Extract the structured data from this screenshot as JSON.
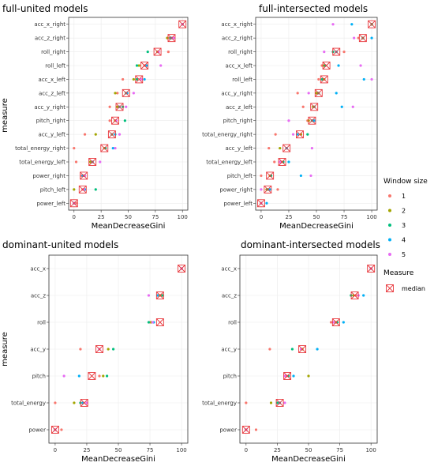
{
  "series_colors": {
    "1": "#F8766D",
    "2": "#A3A500",
    "3": "#00BF7D",
    "4": "#00B0F6",
    "5": "#E76BF3"
  },
  "median_color": "#E8393E",
  "legend": {
    "window_title": "Window size",
    "window_items": [
      "1",
      "2",
      "3",
      "4",
      "5"
    ],
    "measure_title": "Measure",
    "measure_item": "median"
  },
  "chart_data": [
    {
      "type": "scatter",
      "title": "full-united models",
      "xlabel": "MeanDecreaseGini",
      "ylabel": "measure",
      "xlim": [
        0,
        100
      ],
      "xticks": [
        0,
        25,
        50,
        75,
        100
      ],
      "grid": true,
      "categories": [
        "acc_x_right",
        "acc_z_right",
        "roll_right",
        "roll_left",
        "acc_x_left",
        "acc_z_left",
        "acc_y_right",
        "pitch_right",
        "acc_y_left",
        "total_energy_right",
        "total_energy_left",
        "power_right",
        "pitch_left",
        "power_left"
      ],
      "median": [
        100,
        90,
        77,
        65,
        60,
        48,
        42,
        38,
        35,
        28,
        17,
        9,
        8,
        0
      ],
      "points": [
        {
          "window": 1,
          "values": [
            100,
            88,
            87,
            65,
            45,
            40,
            33,
            33,
            10,
            0,
            2,
            7,
            8,
            2
          ]
        },
        {
          "window": 2,
          "values": [
            100,
            86,
            77,
            60,
            55,
            38,
            40,
            38,
            20,
            28,
            15,
            9,
            0,
            0
          ]
        },
        {
          "window": 3,
          "values": [
            100,
            89,
            68,
            58,
            58,
            48,
            45,
            47,
            35,
            29,
            17,
            10,
            20,
            0
          ]
        },
        {
          "window": 4,
          "values": [
            100,
            90,
            78,
            67,
            65,
            49,
            42,
            39,
            38,
            36,
            17,
            8,
            10,
            0
          ]
        },
        {
          "window": 5,
          "values": [
            100,
            92,
            78,
            80,
            62,
            55,
            48,
            39,
            42,
            38,
            24,
            10,
            9,
            0
          ]
        }
      ]
    },
    {
      "type": "scatter",
      "title": "full-intersected models",
      "xlabel": "MeanDecreaseGini",
      "ylabel": "",
      "xlim": [
        0,
        100
      ],
      "xticks": [
        0,
        25,
        50,
        75,
        100
      ],
      "grid": true,
      "categories": [
        "acc_x_right",
        "acc_z_right",
        "roll_right",
        "acc_x_left",
        "roll_left",
        "acc_y_right",
        "acc_z_left",
        "pitch_right",
        "total_energy_right",
        "acc_y_left",
        "total_energy_left",
        "pitch_left",
        "power_right",
        "power_left"
      ],
      "median": [
        100,
        92,
        68,
        59,
        57,
        52,
        48,
        46,
        35,
        23,
        19,
        8,
        6,
        0
      ],
      "points": [
        {
          "window": 1,
          "values": [
            100,
            88,
            75,
            55,
            52,
            33,
            38,
            42,
            13,
            7,
            12,
            0,
            15,
            0
          ]
        },
        {
          "window": 2,
          "values": [
            100,
            92,
            68,
            57,
            57,
            50,
            47,
            43,
            36,
            17,
            18,
            8,
            5,
            0
          ]
        },
        {
          "window": 3,
          "values": [
            100,
            92,
            65,
            58,
            55,
            52,
            48,
            46,
            42,
            23,
            20,
            9,
            6,
            0
          ]
        },
        {
          "window": 4,
          "values": [
            82,
            100,
            68,
            70,
            93,
            68,
            73,
            48,
            33,
            23,
            25,
            36,
            8,
            5
          ]
        },
        {
          "window": 5,
          "values": [
            65,
            84,
            57,
            90,
            100,
            43,
            83,
            25,
            29,
            46,
            17,
            45,
            0,
            0
          ]
        }
      ]
    },
    {
      "type": "scatter",
      "title": "dominant-united models",
      "xlabel": "MeanDecreaseGini",
      "ylabel": "measure",
      "xlim": [
        0,
        100
      ],
      "xticks": [
        0,
        25,
        50,
        75,
        100
      ],
      "grid": true,
      "categories": [
        "acc_x",
        "acc_z",
        "roll",
        "acc_y",
        "pitch",
        "total_energy",
        "power"
      ],
      "median": [
        100,
        83,
        83,
        35,
        29,
        23,
        0
      ],
      "points": [
        {
          "window": 1,
          "values": [
            100,
            85,
            75,
            20,
            35,
            0,
            5
          ]
        },
        {
          "window": 2,
          "values": [
            100,
            83,
            76,
            42,
            38,
            15,
            0
          ]
        },
        {
          "window": 3,
          "values": [
            100,
            85,
            74,
            46,
            41,
            20,
            0
          ]
        },
        {
          "window": 4,
          "values": [
            100,
            81,
            78,
            35,
            19,
            22,
            0
          ]
        },
        {
          "window": 5,
          "values": [
            100,
            74,
            77,
            35,
            7,
            25,
            0
          ]
        }
      ]
    },
    {
      "type": "scatter",
      "title": "dominant-intersected models",
      "xlabel": "MeanDecreaseGini",
      "ylabel": "",
      "xlim": [
        0,
        100
      ],
      "xticks": [
        0,
        25,
        50,
        75,
        100
      ],
      "grid": true,
      "categories": [
        "acc_x",
        "acc_z",
        "roll",
        "acc_y",
        "pitch",
        "total_energy",
        "power"
      ],
      "median": [
        100,
        87,
        72,
        45,
        33,
        27,
        0
      ],
      "points": [
        {
          "window": 1,
          "values": [
            100,
            88,
            68,
            19,
            32,
            0,
            8
          ]
        },
        {
          "window": 2,
          "values": [
            100,
            86,
            72,
            45,
            50,
            20,
            0
          ]
        },
        {
          "window": 3,
          "values": [
            100,
            84,
            73,
            37,
            34,
            25,
            0
          ]
        },
        {
          "window": 4,
          "values": [
            100,
            94,
            78,
            57,
            38,
            27,
            0
          ]
        },
        {
          "window": 5,
          "values": [
            100,
            90,
            70,
            44,
            31,
            31,
            0
          ]
        }
      ]
    }
  ]
}
